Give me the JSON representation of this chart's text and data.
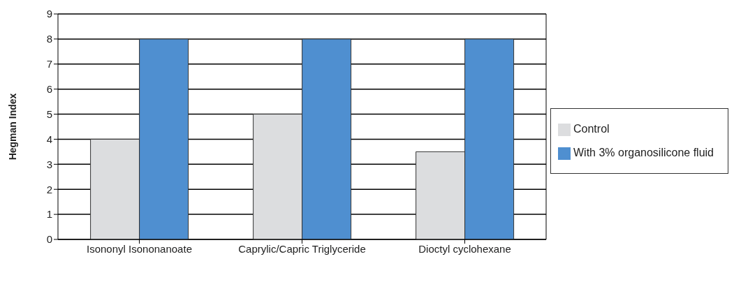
{
  "chart_data": {
    "type": "bar",
    "ylabel": "Hegman Index",
    "categories": [
      "Isononyl Isononanoate",
      "Caprylic/Capric Triglyceride",
      "Dioctyl cyclohexane"
    ],
    "series": [
      {
        "name": "Control",
        "color": "#dcdddf",
        "values": [
          4,
          5,
          3.5
        ]
      },
      {
        "name": "With 3% organosilicone fluid",
        "color": "#4f8fd0",
        "values": [
          8,
          8,
          8
        ]
      }
    ],
    "ylim": [
      0,
      9
    ],
    "yticks": [
      0,
      1,
      2,
      3,
      4,
      5,
      6,
      7,
      8,
      9
    ],
    "grid": "y",
    "legend": "right"
  }
}
